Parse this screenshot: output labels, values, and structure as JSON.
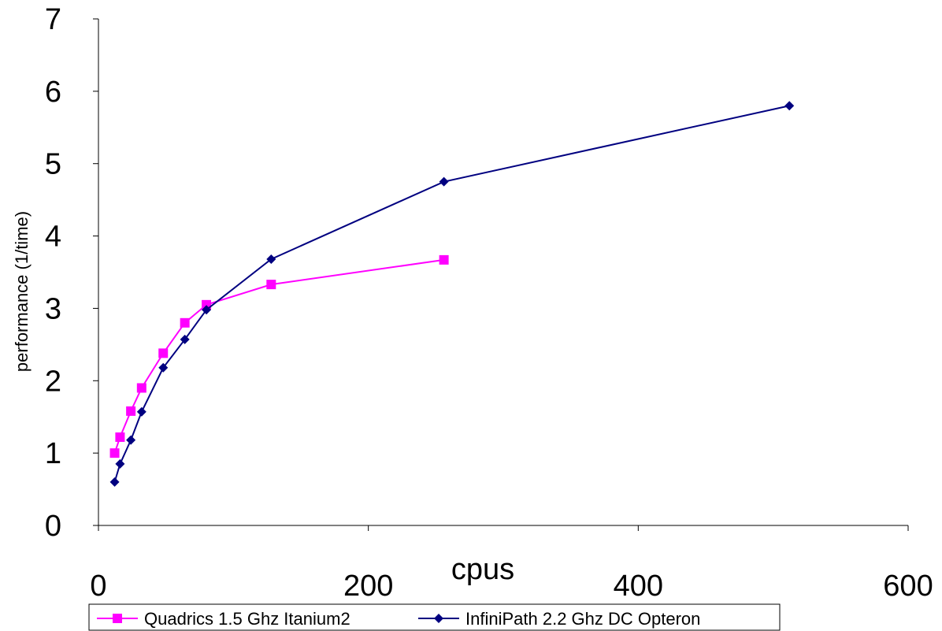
{
  "chart_data": {
    "type": "line",
    "title": "",
    "xlabel": "cpus",
    "ylabel": "performance (1/time)",
    "xlim": [
      0,
      600
    ],
    "ylim": [
      0,
      7
    ],
    "x_ticks": [
      0,
      200,
      400,
      600
    ],
    "y_ticks": [
      0,
      1,
      2,
      3,
      4,
      5,
      6,
      7
    ],
    "grid": false,
    "legend_position": "bottom",
    "series": [
      {
        "name": "Quadrics 1.5 Ghz Itanium2",
        "color": "#ff00ff",
        "marker": "square",
        "x": [
          12,
          16,
          24,
          32,
          48,
          64,
          80,
          128,
          256
        ],
        "y": [
          1.0,
          1.22,
          1.58,
          1.9,
          2.38,
          2.8,
          3.05,
          3.33,
          3.67
        ]
      },
      {
        "name": "InfiniPath 2.2 Ghz DC Opteron",
        "color": "#000080",
        "marker": "diamond",
        "x": [
          12,
          16,
          24,
          32,
          48,
          64,
          80,
          128,
          256,
          512
        ],
        "y": [
          0.6,
          0.85,
          1.18,
          1.57,
          2.18,
          2.57,
          2.98,
          3.68,
          4.75,
          5.8
        ]
      }
    ]
  }
}
